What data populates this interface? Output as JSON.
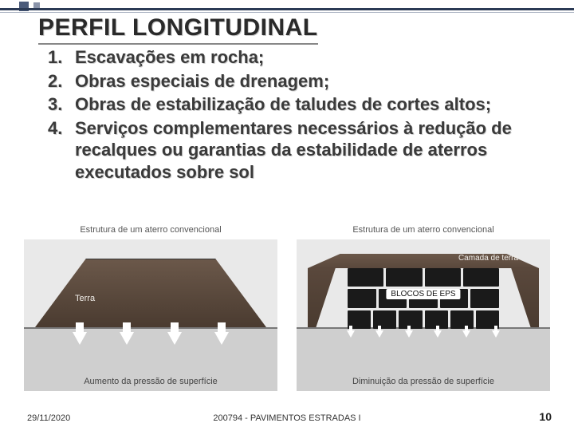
{
  "title": "PERFIL  LONGITUDINAL",
  "list": [
    {
      "n": "1.",
      "t": "Escavações em rocha;"
    },
    {
      "n": "2.",
      "t": "Obras especiais de drenagem;"
    },
    {
      "n": "3.",
      "t": "Obras de estabilização de taludes de cortes altos;"
    },
    {
      "n": "4.",
      "t": "Serviços complementares necessários à redução de recalques ou garantias da estabilidade de aterros executados sobre sol"
    }
  ],
  "fig_left": {
    "title": "Estrutura de um aterro convencional",
    "label": "Terra",
    "caption": "Aumento da pressão de superfície",
    "colors": {
      "fill_top": "#6b584a",
      "fill_bot": "#4a3b30",
      "sky": "#e9e9e9",
      "ground": "#cfcfcf"
    },
    "arrow_count": 4
  },
  "fig_right": {
    "title": "Estrutura de um aterro convencional",
    "soil_label": "Camada de terra",
    "eps_label": "BLOCOS DE EPS",
    "caption": "Diminuição da pressão de superfície",
    "eps_rows": [
      4,
      5,
      6
    ],
    "arrow_count": 6,
    "colors": {
      "block": "#1a1a1a"
    }
  },
  "footer": {
    "date": "29/11/2020",
    "mid": "200794 - PAVIMENTOS ESTRADAS I",
    "page": "10"
  },
  "accent_colors": {
    "dark": "#4a5a7a",
    "light": "#8a94aa",
    "rule": "#2b3a55"
  }
}
